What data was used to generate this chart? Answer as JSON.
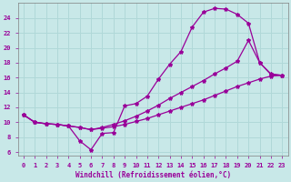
{
  "xlabel": "Windchill (Refroidissement éolien,°C)",
  "bg_color": "#c8e8e8",
  "grid_color": "#b0d8d8",
  "line_color": "#990099",
  "xlim": [
    -0.5,
    23.5
  ],
  "ylim": [
    5.5,
    26
  ],
  "xticks": [
    0,
    1,
    2,
    3,
    4,
    5,
    6,
    7,
    8,
    9,
    10,
    11,
    12,
    13,
    14,
    15,
    16,
    17,
    18,
    19,
    20,
    21,
    22,
    23
  ],
  "yticks": [
    6,
    8,
    10,
    12,
    14,
    16,
    18,
    20,
    22,
    24
  ],
  "curve1_x": [
    0,
    1,
    2,
    3,
    4,
    5,
    6,
    7,
    8,
    9,
    10,
    11,
    12,
    13,
    14,
    15,
    16,
    17,
    18,
    19,
    20,
    21,
    22,
    23
  ],
  "curve1_y": [
    11.0,
    10.0,
    9.8,
    9.7,
    9.5,
    7.5,
    6.3,
    8.5,
    8.6,
    12.2,
    12.5,
    13.5,
    15.8,
    17.8,
    19.5,
    22.8,
    24.8,
    25.3,
    25.2,
    24.5,
    23.3,
    18.0,
    16.4,
    16.3
  ],
  "curve2_x": [
    0,
    1,
    2,
    3,
    4,
    5,
    6,
    7,
    8,
    9,
    10,
    11,
    12,
    13,
    14,
    15,
    16,
    17,
    18,
    19,
    20,
    21,
    22,
    23
  ],
  "curve2_y": [
    11.0,
    10.0,
    9.8,
    9.7,
    9.5,
    9.3,
    9.0,
    9.3,
    9.7,
    10.2,
    10.8,
    11.5,
    12.3,
    13.2,
    14.0,
    14.8,
    15.6,
    16.5,
    17.3,
    18.2,
    21.0,
    18.0,
    16.5,
    16.3
  ],
  "curve3_x": [
    0,
    1,
    2,
    3,
    4,
    5,
    6,
    7,
    8,
    9,
    10,
    11,
    12,
    13,
    14,
    15,
    16,
    17,
    18,
    19,
    20,
    21,
    22,
    23
  ],
  "curve3_y": [
    11.0,
    10.0,
    9.8,
    9.7,
    9.5,
    9.3,
    9.0,
    9.2,
    9.4,
    9.7,
    10.1,
    10.5,
    11.0,
    11.5,
    12.0,
    12.5,
    13.0,
    13.6,
    14.2,
    14.8,
    15.3,
    15.8,
    16.2,
    16.3
  ]
}
